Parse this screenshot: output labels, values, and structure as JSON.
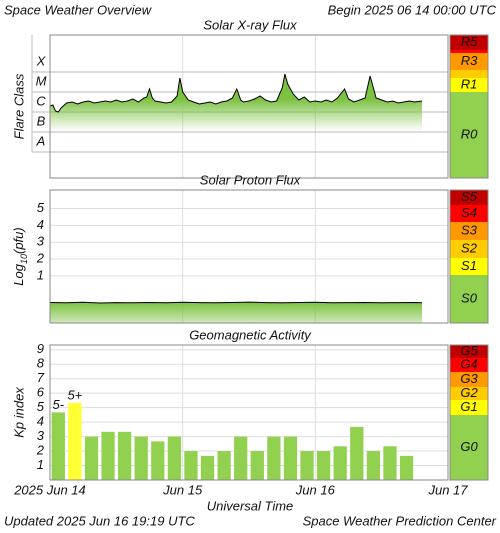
{
  "title": "Space Weather Overview",
  "begin": "Begin 2025 06 14 00:00 UTC",
  "updated": "Updated 2025 Jun 16 19:19 UTC",
  "source": "Space Weather Prediction Center",
  "chart_data": [
    {
      "type": "line",
      "title": "Solar X-ray Flux",
      "y_label": "Flare Class",
      "x": [
        0,
        0.5,
        1,
        1.5,
        2,
        3,
        4,
        5,
        6,
        7,
        8,
        9,
        10,
        11,
        12,
        13,
        14,
        15,
        16,
        17,
        17.5,
        18,
        18.5,
        19,
        20,
        21,
        22,
        23,
        23.5,
        24,
        25,
        26,
        27,
        28,
        29,
        30,
        31,
        32,
        33,
        33.8,
        34.5,
        35,
        36,
        37,
        38,
        39,
        40,
        41,
        42,
        42.5,
        43,
        44,
        45,
        46,
        47,
        48,
        49,
        50,
        51,
        52,
        53.3,
        54,
        55,
        56,
        57,
        57.9,
        58.5,
        59,
        60,
        61,
        62,
        63,
        64,
        65,
        66,
        67.3
      ],
      "values": [
        -5.7,
        -5.65,
        -5.95,
        -6.0,
        -5.8,
        -5.55,
        -5.5,
        -5.6,
        -5.5,
        -5.45,
        -5.55,
        -5.5,
        -5.45,
        -5.5,
        -5.4,
        -5.5,
        -5.45,
        -5.35,
        -5.5,
        -5.3,
        -5.25,
        -4.85,
        -5.3,
        -5.45,
        -5.5,
        -5.55,
        -5.5,
        -5.2,
        -4.3,
        -5.0,
        -5.4,
        -5.5,
        -5.6,
        -5.55,
        -5.5,
        -5.6,
        -5.5,
        -5.45,
        -5.3,
        -4.85,
        -5.4,
        -5.5,
        -5.45,
        -5.35,
        -5.2,
        -5.4,
        -5.5,
        -5.45,
        -4.8,
        -4.1,
        -4.6,
        -5.1,
        -5.4,
        -5.25,
        -5.5,
        -5.45,
        -5.5,
        -5.4,
        -5.5,
        -5.3,
        -4.85,
        -5.35,
        -5.5,
        -5.4,
        -5.3,
        -4.2,
        -4.8,
        -5.3,
        -5.4,
        -5.5,
        -5.45,
        -5.55,
        -5.5,
        -5.45,
        -5.5,
        -5.45
      ],
      "color": "#000000",
      "fill_color": "#7cc242",
      "xlim": [
        0,
        72
      ],
      "ylim": [
        -9.3,
        -2.15
      ],
      "yticks": [
        {
          "value": -8,
          "label": "A"
        },
        {
          "value": -7,
          "label": "B"
        },
        {
          "value": -6,
          "label": "C"
        },
        {
          "value": -5,
          "label": "M"
        },
        {
          "value": -4,
          "label": "X"
        }
      ],
      "scale": {
        "labels": [
          "R5",
          null,
          "R3",
          null,
          "R1",
          "R0"
        ],
        "colors": [
          "#c00000",
          "#ff0000",
          "#ff9900",
          "#ffcc00",
          "#ffff00",
          "#92d050"
        ]
      }
    },
    {
      "type": "line",
      "title": "Solar Proton Flux",
      "y_label": [
        "Log",
        "10",
        "(pfu)"
      ],
      "x": [
        0,
        3,
        6,
        9,
        12,
        15,
        18,
        21,
        24,
        27,
        30,
        33,
        36,
        39,
        42,
        45,
        48,
        51,
        54,
        57,
        60,
        63,
        66,
        67.3
      ],
      "values": [
        -0.58,
        -0.6,
        -0.57,
        -0.61,
        -0.59,
        -0.6,
        -0.58,
        -0.6,
        -0.57,
        -0.59,
        -0.6,
        -0.58,
        -0.56,
        -0.59,
        -0.6,
        -0.58,
        -0.57,
        -0.6,
        -0.59,
        -0.58,
        -0.6,
        -0.59,
        -0.58,
        -0.6
      ],
      "color": "#000000",
      "fill_color": "#7cc242",
      "xlim": [
        0,
        72
      ],
      "ylim": [
        -1.8,
        6.1
      ],
      "yticks": [
        1,
        2,
        3,
        4,
        5
      ],
      "scale": {
        "labels": [
          "S5",
          "S4",
          "S3",
          "S2",
          "S1",
          "S0"
        ],
        "colors": [
          "#c00000",
          "#ff0000",
          "#ff9900",
          "#ffcc00",
          "#ffff00",
          "#92d050"
        ]
      }
    },
    {
      "type": "bar",
      "title": "Geomagnetic Activity",
      "y_label": "Kp index",
      "x_label": "Universal Time",
      "x": [
        1.5,
        4.5,
        7.5,
        10.5,
        13.5,
        16.5,
        19.5,
        22.5,
        25.5,
        28.5,
        31.5,
        34.5,
        37.5,
        40.5,
        43.5,
        46.5,
        49.5,
        52.5,
        55.5,
        58.5,
        61.5,
        64.5
      ],
      "values": [
        4.67,
        5.33,
        3,
        3.33,
        3.33,
        3,
        2.67,
        3,
        2,
        1.67,
        2,
        3,
        2,
        3,
        3,
        2,
        2,
        2.33,
        3.67,
        2,
        2.33,
        1.67
      ],
      "value_labels": [
        "5-",
        "5+",
        null,
        null,
        null,
        null,
        null,
        null,
        null,
        null,
        null,
        null,
        null,
        null,
        null,
        null,
        null,
        null,
        null,
        null,
        null,
        null
      ],
      "colors": [
        "#92d050",
        "#ffff33",
        "#92d050",
        "#92d050",
        "#92d050",
        "#92d050",
        "#92d050",
        "#92d050",
        "#92d050",
        "#92d050",
        "#92d050",
        "#92d050",
        "#92d050",
        "#92d050",
        "#92d050",
        "#92d050",
        "#92d050",
        "#92d050",
        "#92d050",
        "#92d050",
        "#92d050",
        "#92d050"
      ],
      "xlim": [
        0,
        72
      ],
      "ylim": [
        0,
        9.33
      ],
      "xticks": [
        {
          "value": 0,
          "label": "2025 Jun 14"
        },
        {
          "value": 24,
          "label": "Jun 15"
        },
        {
          "value": 48,
          "label": "Jun 16"
        },
        {
          "value": 72,
          "label": "Jun 17"
        }
      ],
      "yticks": [
        1,
        2,
        3,
        4,
        5,
        6,
        7,
        8,
        9
      ],
      "scale": {
        "labels": [
          "G5",
          "G4",
          "G3",
          "G2",
          "G1",
          "G0"
        ],
        "colors": [
          "#c00000",
          "#ff0000",
          "#ff9900",
          "#ffcc00",
          "#ffff00",
          "#92d050"
        ]
      }
    }
  ]
}
